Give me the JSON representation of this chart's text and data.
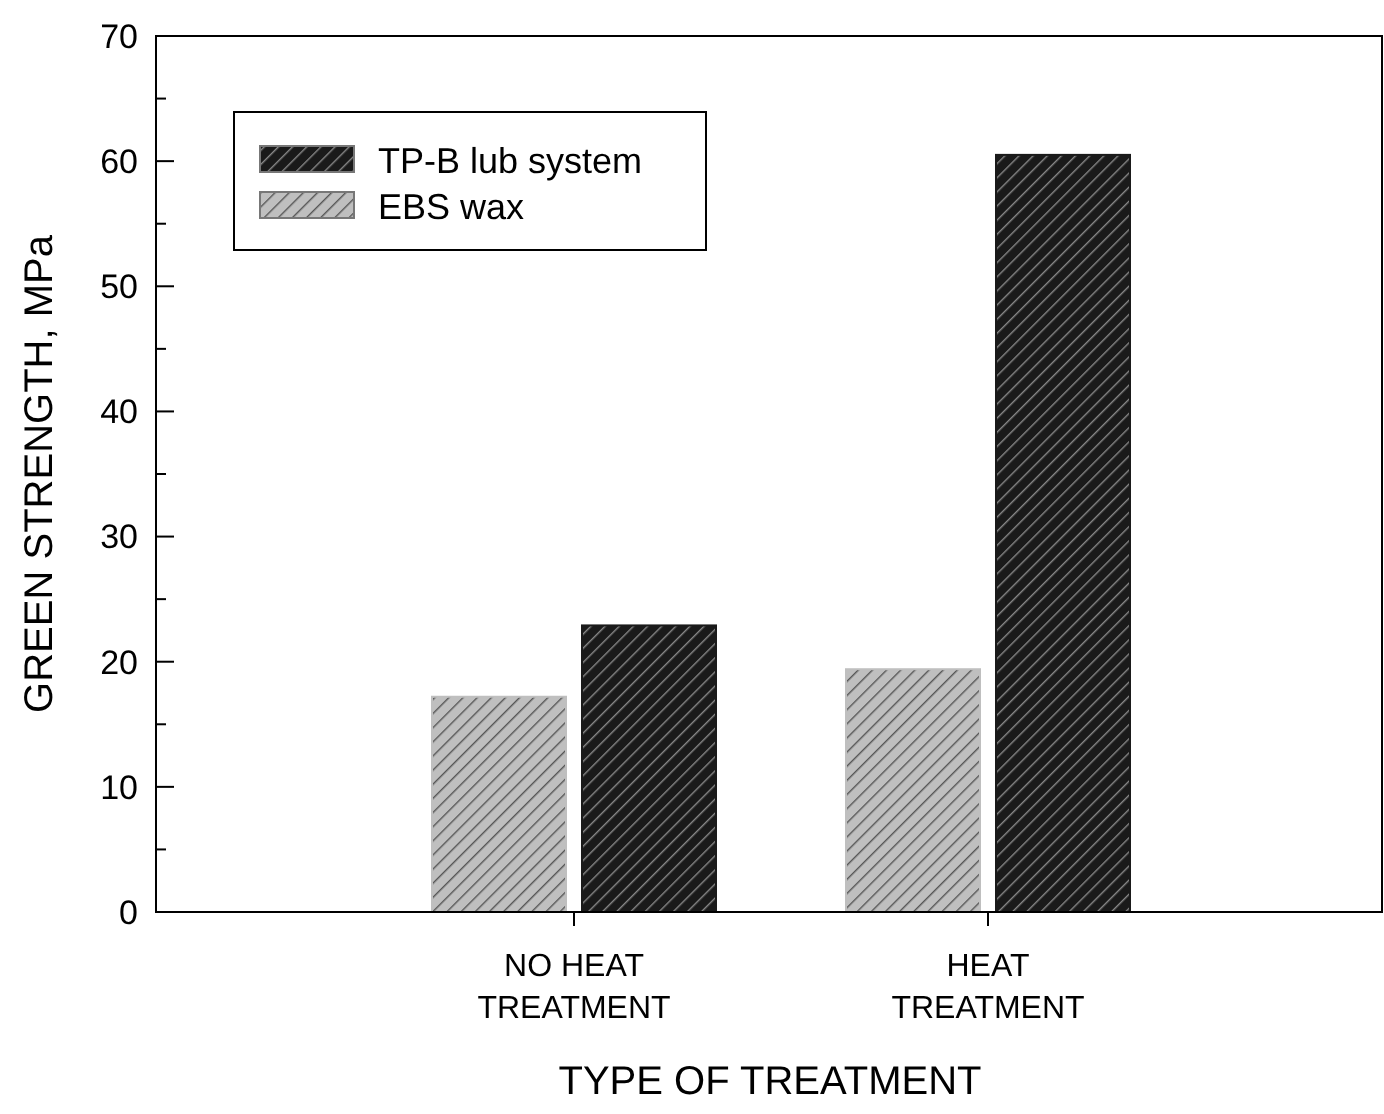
{
  "chart_data": {
    "type": "bar",
    "xlabel": "TYPE OF TREATMENT",
    "ylabel": "GREEN STRENGTH, MPa",
    "categories": [
      "NO HEAT\nTREATMENT",
      "HEAT\nTREATMENT"
    ],
    "series": [
      {
        "name": "EBS wax",
        "color": "#bfbfbf",
        "values": [
          17.2,
          19.4
        ]
      },
      {
        "name": "TP-B lub system",
        "color": "#1a1a1a",
        "values": [
          22.9,
          60.5
        ]
      }
    ],
    "ylim": [
      0,
      70
    ],
    "yticks": [
      0,
      {
        "value": 5,
        "label": null
      },
      10,
      {
        "value": 15,
        "label": null
      },
      20,
      {
        "value": 25,
        "label": null
      },
      30,
      {
        "value": 35,
        "label": null
      },
      40,
      {
        "value": 45,
        "label": null
      },
      50,
      {
        "value": 55,
        "label": null
      },
      60,
      {
        "value": 65,
        "label": null
      },
      70
    ],
    "legend": "top left",
    "grid": false
  }
}
